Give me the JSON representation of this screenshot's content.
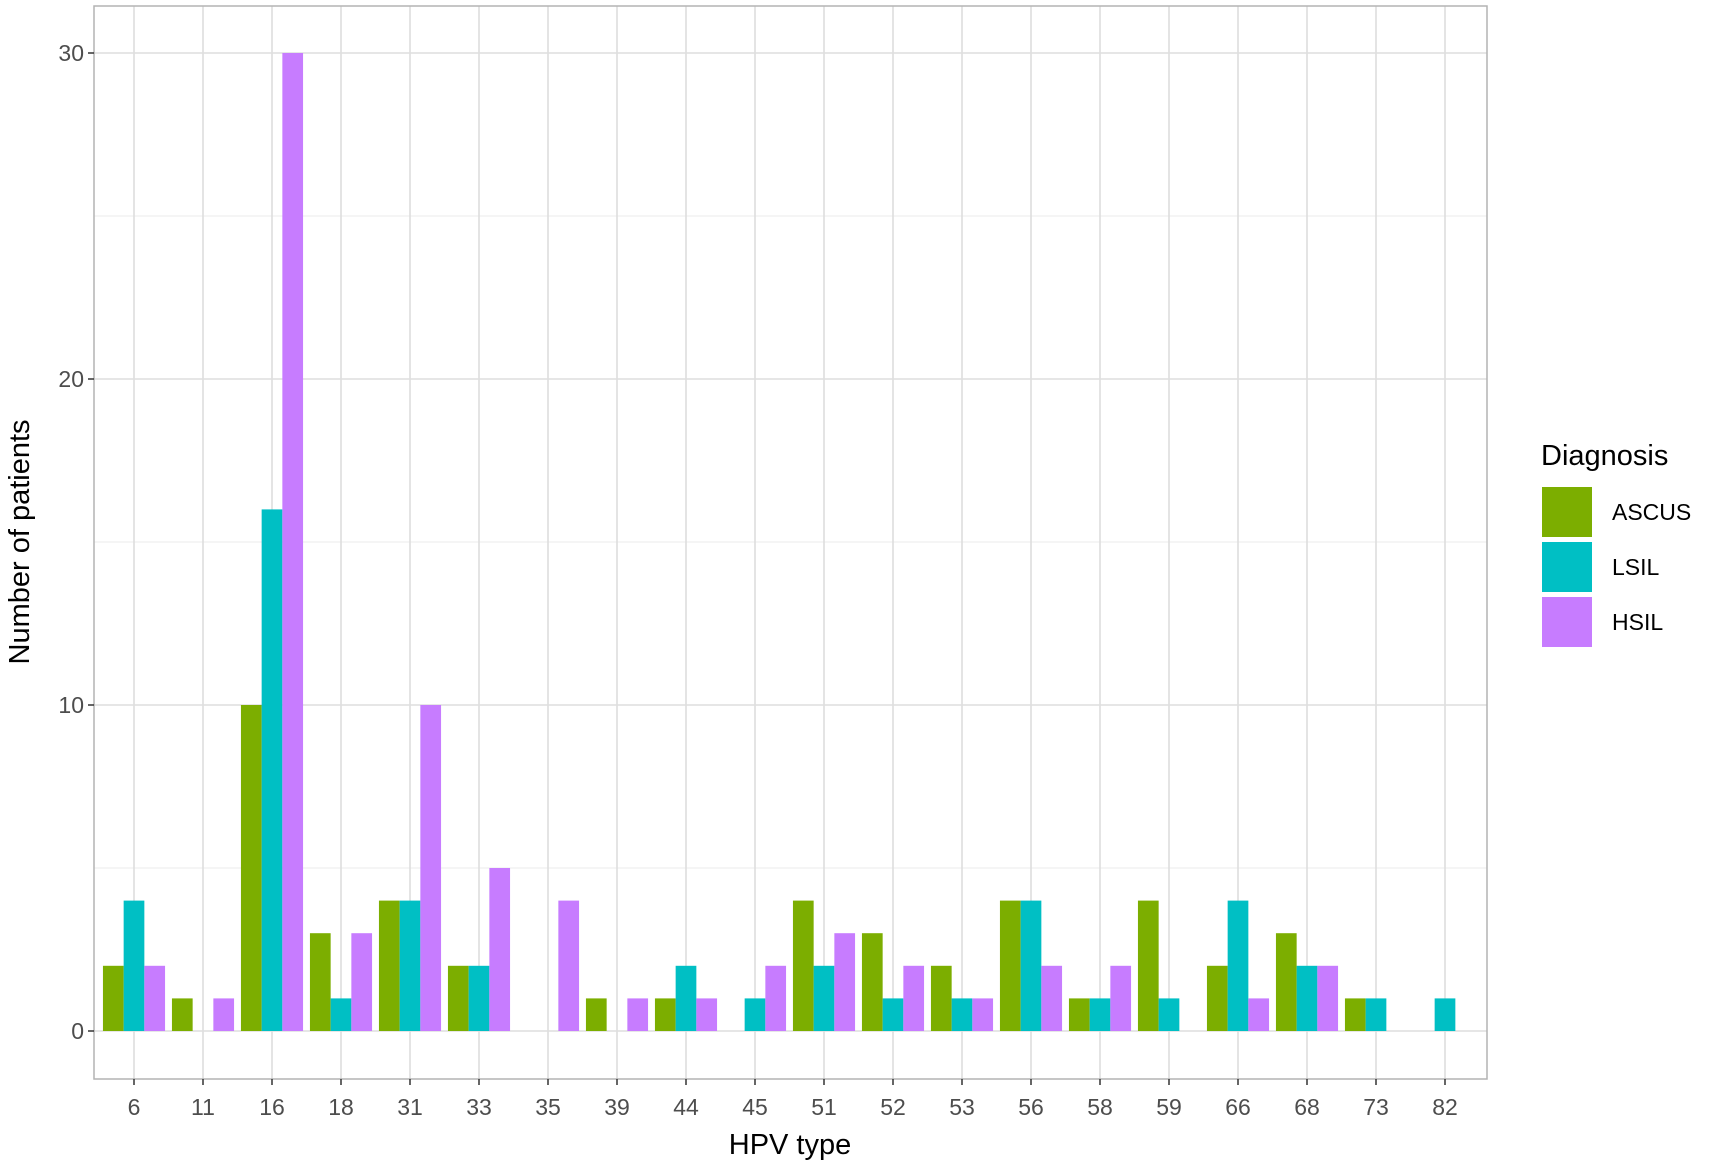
{
  "chart_data": {
    "type": "bar",
    "xlabel": "HPV type",
    "ylabel": "Number of patients",
    "ylim": [
      -1.4,
      31.5
    ],
    "yticks": [
      0,
      10,
      20,
      30
    ],
    "grid": true,
    "legend": {
      "title": "Diagnosis",
      "position": "right"
    },
    "categories": [
      "6",
      "11",
      "16",
      "18",
      "31",
      "33",
      "35",
      "39",
      "44",
      "45",
      "51",
      "52",
      "53",
      "56",
      "58",
      "59",
      "66",
      "68",
      "73",
      "82"
    ],
    "series": [
      {
        "name": "ASCUS",
        "color": "#7cae00",
        "values": [
          2,
          1,
          10,
          3,
          4,
          2,
          null,
          1,
          1,
          null,
          4,
          3,
          2,
          4,
          1,
          4,
          2,
          3,
          1,
          null
        ]
      },
      {
        "name": "LSIL",
        "color": "#00bfc4",
        "values": [
          4,
          null,
          16,
          1,
          4,
          2,
          null,
          null,
          2,
          1,
          2,
          1,
          1,
          4,
          1,
          1,
          4,
          2,
          1,
          1
        ]
      },
      {
        "name": "HSIL",
        "color": "#c77cff",
        "values": [
          2,
          1,
          30,
          3,
          10,
          5,
          4,
          1,
          1,
          2,
          3,
          2,
          1,
          2,
          2,
          null,
          1,
          2,
          null,
          null
        ]
      }
    ]
  }
}
